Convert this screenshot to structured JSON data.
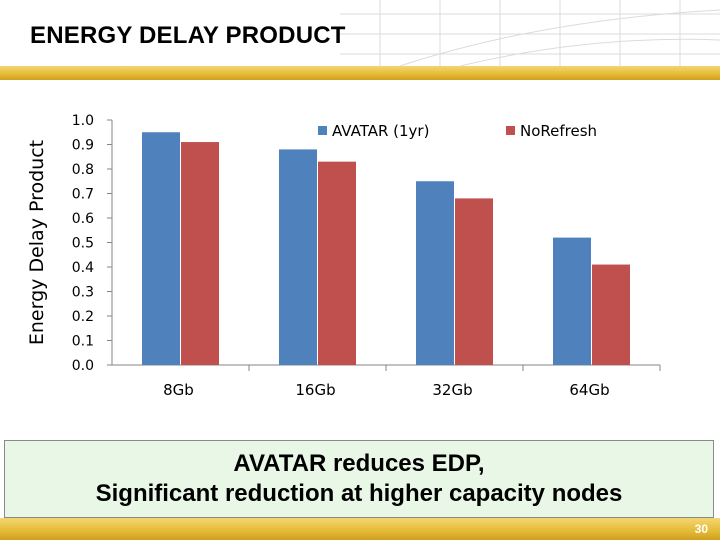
{
  "slide": {
    "title": "ENERGY DELAY PRODUCT",
    "callout_line1": "AVATAR reduces EDP,",
    "callout_line2": "Significant reduction at higher capacity nodes",
    "page_number": "30"
  },
  "colors": {
    "series_avatar": "#4f81bd",
    "series_norefresh": "#c0504d",
    "accent_gold": "#e6bd3a",
    "callout_bg": "#e9f7e6"
  },
  "chart_data": {
    "type": "bar",
    "title": "",
    "xlabel": "",
    "ylabel": "Energy Delay Product",
    "ylim": [
      0,
      1.0
    ],
    "yticks": [
      "0.0",
      "0.1",
      "0.2",
      "0.3",
      "0.4",
      "0.5",
      "0.6",
      "0.7",
      "0.8",
      "0.9",
      "1.0"
    ],
    "categories": [
      "8Gb",
      "16Gb",
      "32Gb",
      "64Gb"
    ],
    "series": [
      {
        "name": "AVATAR (1yr)",
        "values": [
          0.95,
          0.88,
          0.75,
          0.52
        ]
      },
      {
        "name": "NoRefresh",
        "values": [
          0.91,
          0.83,
          0.68,
          0.41
        ]
      }
    ],
    "legend": "top",
    "grid": false
  }
}
